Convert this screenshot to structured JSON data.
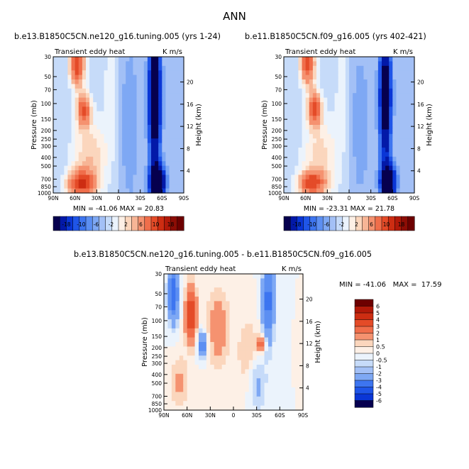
{
  "page_title": "ANN",
  "colors": {
    "neg": [
      "#06004f",
      "#0319a8",
      "#0a36d6",
      "#1f55e8",
      "#3d75f0",
      "#5c8ff2",
      "#7ea8f4",
      "#a3c0f6",
      "#c6dbf9",
      "#ebf3fc"
    ],
    "pos": [
      "#fdf0e6",
      "#fbd6bd",
      "#f7b596",
      "#f59270",
      "#f06e4b",
      "#e44b28",
      "#cd2d12",
      "#b21909",
      "#8c0d05",
      "#6d0000"
    ]
  },
  "chart_data": [
    {
      "type": "contour",
      "case_title": "b.e13.B1850C5CN.ne120_g16.tuning.005 (yrs 1-24)",
      "left_title": "Transient eddy heat",
      "units": "K m/s",
      "ylabel": "Pressure (mb)",
      "ylabel_right": "Height (km)",
      "x_ticks": [
        "90N",
        "60N",
        "30N",
        "0",
        "30S",
        "60S",
        "90S"
      ],
      "y_ticks": [
        "30",
        "50",
        "70",
        "100",
        "150",
        "200",
        "250",
        "300",
        "400",
        "500",
        "700",
        "850",
        "1000"
      ],
      "height_ticks": [
        "20",
        "16",
        "12",
        "8",
        "4"
      ],
      "min_max": "MIN = -41.06   MAX = 20.83",
      "colorbar_labels": [
        "-18",
        "-10",
        "-6",
        "-2",
        "2",
        "6",
        "10",
        "18"
      ]
    },
    {
      "type": "contour",
      "case_title": "b.e11.B1850C5CN.f09_g16.005 (yrs 402-421)",
      "left_title": "Transient eddy heat",
      "units": "K m/s",
      "ylabel": "Pressure (mb)",
      "ylabel_right": "Height (km)",
      "x_ticks": [
        "90N",
        "60N",
        "30N",
        "0",
        "30S",
        "60S",
        "90S"
      ],
      "y_ticks": [
        "30",
        "50",
        "70",
        "100",
        "150",
        "200",
        "250",
        "300",
        "400",
        "500",
        "700",
        "850",
        "1000"
      ],
      "height_ticks": [
        "20",
        "16",
        "12",
        "8",
        "4"
      ],
      "min_max": "MIN = -23.31   MAX = 21.78",
      "colorbar_labels": [
        "-18",
        "-10",
        "-6",
        "-2",
        "2",
        "6",
        "10",
        "18"
      ]
    },
    {
      "type": "contour",
      "case_title": "b.e13.B1850C5CN.ne120_g16.tuning.005 - b.e11.B1850C5CN.f09_g16.005",
      "left_title": "Transient eddy heat",
      "units": "K m/s",
      "ylabel": "Pressure (mb)",
      "ylabel_right": "Height (km)",
      "x_ticks": [
        "90N",
        "60N",
        "30N",
        "0",
        "30S",
        "60S",
        "90S"
      ],
      "y_ticks": [
        "30",
        "50",
        "70",
        "100",
        "150",
        "200",
        "250",
        "300",
        "400",
        "500",
        "700",
        "850",
        "1000"
      ],
      "height_ticks": [
        "20",
        "16",
        "12",
        "8",
        "4"
      ],
      "min_max": "MIN = -41.06   MAX =  17.59",
      "colorbar_labels": [
        "6",
        "5",
        "4",
        "3",
        "2",
        "1",
        "0.5",
        "0",
        "-0.5",
        "-1",
        "-2",
        "-3",
        "-4",
        "-5",
        "-6"
      ]
    }
  ]
}
